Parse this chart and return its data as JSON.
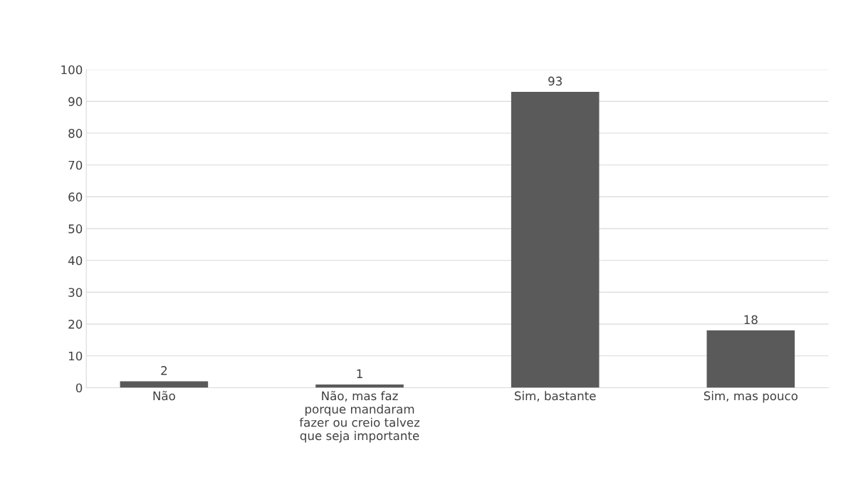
{
  "chart_data": {
    "type": "bar",
    "categories": [
      "Não",
      "Não, mas faz\nporque mandaram\nfazer ou creio talvez\nque seja importante",
      "Sim, bastante",
      "Sim, mas pouco"
    ],
    "values": [
      2,
      1,
      93,
      18
    ],
    "color": "#5a5a5a",
    "ylim": [
      0,
      100
    ],
    "yticks": [
      0,
      10,
      20,
      30,
      40,
      50,
      60,
      70,
      80,
      90,
      100
    ],
    "grid": "y",
    "data_labels": true
  }
}
